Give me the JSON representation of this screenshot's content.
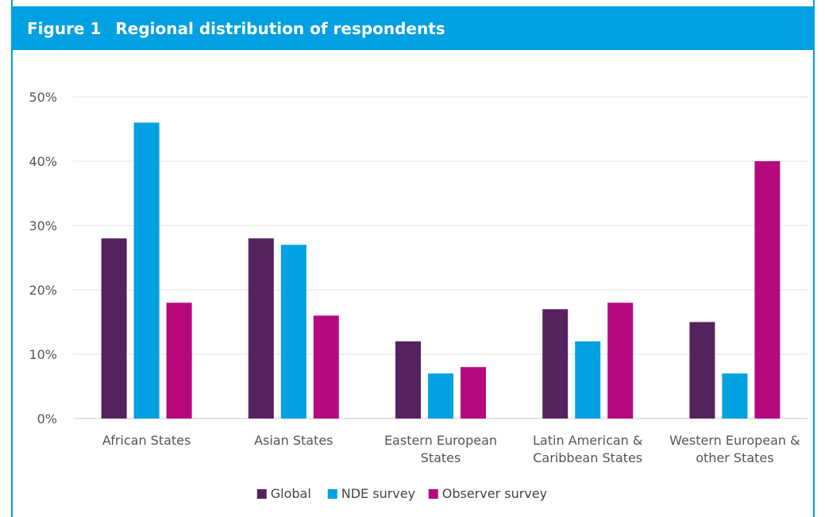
{
  "header": {
    "figure_label": "Figure 1",
    "title": "Regional distribution of respondents"
  },
  "chart_data": {
    "type": "bar",
    "title": "Regional distribution of respondents",
    "categories": [
      [
        "African States"
      ],
      [
        "Asian States"
      ],
      [
        "Eastern European",
        "States"
      ],
      [
        "Latin American &",
        "Caribbean States"
      ],
      [
        "Western European &",
        "other States"
      ]
    ],
    "series": [
      {
        "name": "Global",
        "color": "#55215f",
        "values": [
          28,
          28,
          12,
          17,
          15
        ]
      },
      {
        "name": "NDE survey",
        "color": "#00a0e1",
        "values": [
          46,
          27,
          7,
          12,
          7
        ]
      },
      {
        "name": "Observer survey",
        "color": "#b5097d",
        "values": [
          18,
          16,
          8,
          18,
          40
        ]
      }
    ],
    "y_ticks": [
      "0%",
      "10%",
      "20%",
      "30%",
      "40%",
      "50%"
    ],
    "ylim": [
      0,
      50
    ],
    "grid": true,
    "legend_position": "bottom"
  }
}
